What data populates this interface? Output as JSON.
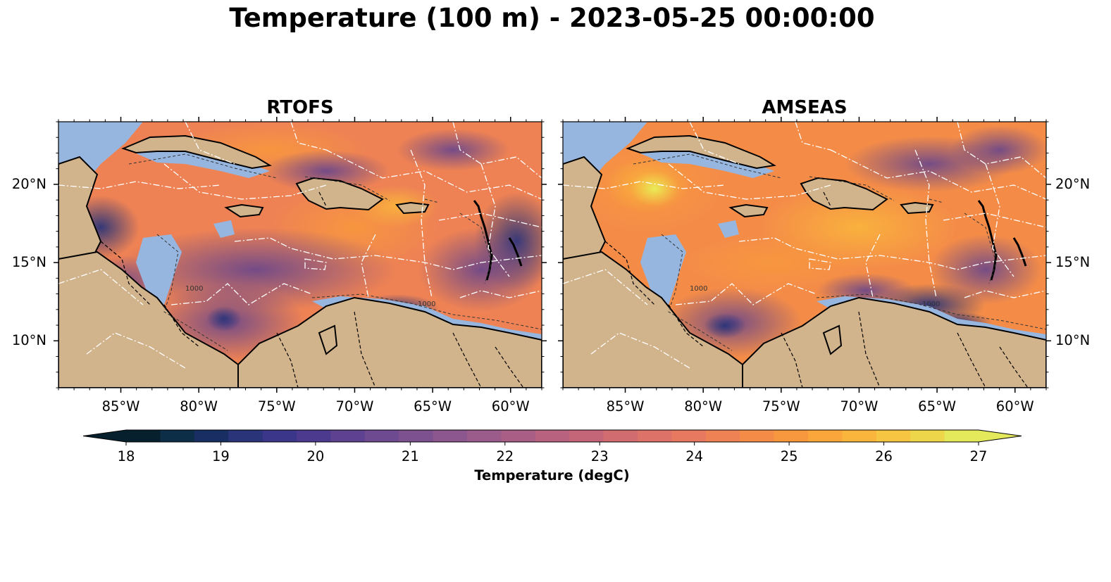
{
  "figure": {
    "title": "Temperature (100 m) - 2023-05-25 00:00:00"
  },
  "panels": [
    {
      "title": "RTOFS"
    },
    {
      "title": "AMSEAS"
    }
  ],
  "map": {
    "lon_ticks": [
      "85°W",
      "80°W",
      "75°W",
      "70°W",
      "65°W",
      "60°W"
    ],
    "lon_values": [
      -85,
      -80,
      -75,
      -70,
      -65,
      -60
    ],
    "lat_ticks": [
      "20°N",
      "15°N",
      "10°N"
    ],
    "lat_values": [
      20,
      15,
      10
    ],
    "extent": {
      "lon_min": -89,
      "lon_max": -58,
      "lat_min": 7,
      "lat_max": 24
    },
    "contour_labels": [
      "1000",
      "1000",
      "1000",
      "1000"
    ],
    "colors": {
      "land": "#d2b48c",
      "shelf_water": "#96b6e0",
      "boundaries": "#ffffff",
      "coastline": "#000000"
    }
  },
  "colorbar": {
    "label": "Temperature (degC)",
    "ticks": [
      "18",
      "19",
      "20",
      "21",
      "22",
      "23",
      "24",
      "25",
      "26",
      "27"
    ],
    "tick_values": [
      18,
      19,
      20,
      21,
      22,
      23,
      24,
      25,
      26,
      27
    ],
    "range": [
      18,
      27
    ],
    "extend": "both",
    "colors": [
      "#06202e",
      "#0c2e46",
      "#192f63",
      "#2a3479",
      "#3b368a",
      "#4c3a8f",
      "#5e4190",
      "#6e4a90",
      "#7d5090",
      "#8c568e",
      "#9b5b8b",
      "#a95e86",
      "#b8627f",
      "#c56678",
      "#d16c70",
      "#dc7268",
      "#e6795f",
      "#ee8254",
      "#f48c48",
      "#f8983e",
      "#faa63b",
      "#fab53c",
      "#f6c542",
      "#eed64b",
      "#e3e95a"
    ]
  }
}
